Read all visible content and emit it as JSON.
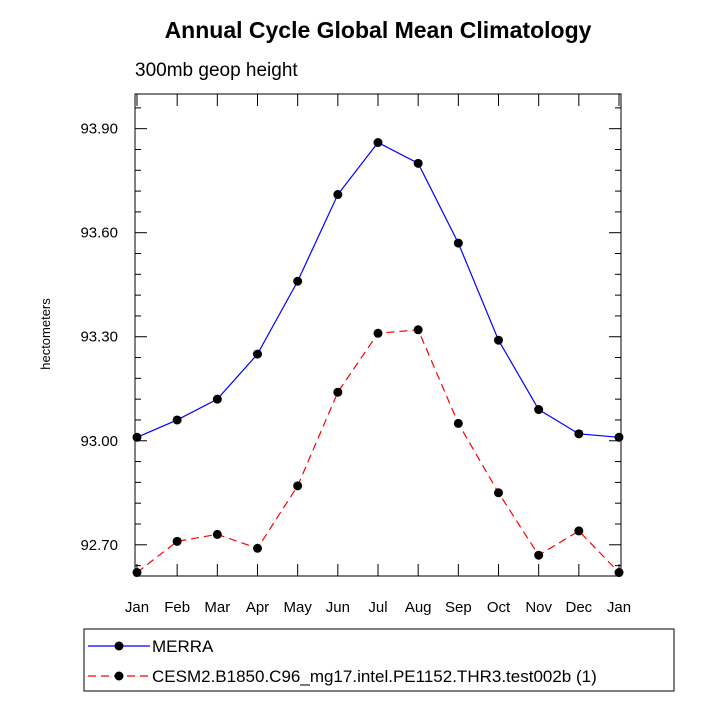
{
  "chart_data": {
    "type": "line",
    "title": "Annual Cycle Global Mean Climatology",
    "subtitle": "300mb geop height",
    "xlabel": "",
    "ylabel": "hectometers",
    "categories": [
      "Jan",
      "Feb",
      "Mar",
      "Apr",
      "May",
      "Jun",
      "Jul",
      "Aug",
      "Sep",
      "Oct",
      "Nov",
      "Dec",
      "Jan"
    ],
    "ylim": [
      92.61,
      94.0
    ],
    "yticks": [
      92.7,
      93.0,
      93.3,
      93.6,
      93.9
    ],
    "ytick_labels": [
      "92.70",
      "93.00",
      "93.30",
      "93.60",
      "93.90"
    ],
    "series": [
      {
        "name": "MERRA",
        "color": "#0000ff",
        "dash": "solid",
        "marker": "circle",
        "values": [
          93.01,
          93.06,
          93.12,
          93.25,
          93.46,
          93.71,
          93.86,
          93.8,
          93.57,
          93.29,
          93.09,
          93.02,
          93.01
        ]
      },
      {
        "name": "CESM2.B1850.C96_mg17.intel.PE1152.THR3.test002b (1)",
        "color": "#ff0000",
        "dash": "dashed",
        "marker": "circle",
        "values": [
          92.62,
          92.71,
          92.73,
          92.69,
          92.87,
          93.14,
          93.31,
          93.32,
          93.05,
          92.85,
          92.67,
          92.74,
          92.62
        ]
      }
    ],
    "legend_position": "bottom"
  }
}
